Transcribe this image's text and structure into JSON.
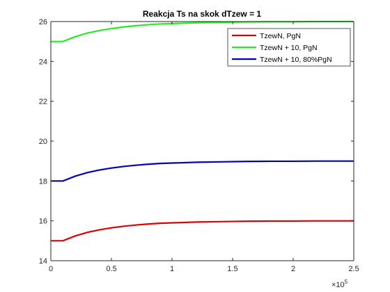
{
  "chart_data": {
    "type": "line",
    "title": "Reakcja Ts na skok dTzew = 1",
    "xlabel": "",
    "ylabel": "",
    "xlim": [
      0,
      250000
    ],
    "ylim": [
      14,
      26
    ],
    "x_ticks": [
      0,
      50000,
      100000,
      150000,
      200000,
      250000
    ],
    "x_tick_labels": [
      "0",
      "0.5",
      "1",
      "1.5",
      "2",
      "2.5"
    ],
    "x_exponent_label": "×10",
    "x_exponent_power": "5",
    "y_ticks": [
      14,
      16,
      18,
      20,
      22,
      24,
      26
    ],
    "y_tick_labels": [
      "14",
      "16",
      "18",
      "20",
      "22",
      "24",
      "26"
    ],
    "grid": false,
    "legend_position": "top-right",
    "series": [
      {
        "name": "TzewN, PgN",
        "color": "#e00000",
        "x": [
          0,
          10000,
          20000,
          30000,
          40000,
          50000,
          60000,
          70000,
          80000,
          90000,
          100000,
          120000,
          140000,
          160000,
          180000,
          200000,
          220000,
          250000
        ],
        "y": [
          15.0,
          15.0,
          15.24,
          15.42,
          15.55,
          15.65,
          15.73,
          15.79,
          15.84,
          15.88,
          15.9,
          15.94,
          15.96,
          15.98,
          15.99,
          15.99,
          16.0,
          16.0
        ]
      },
      {
        "name": "TzewN + 10, PgN",
        "color": "#22ee22",
        "x": [
          0,
          10000,
          20000,
          30000,
          40000,
          50000,
          60000,
          70000,
          80000,
          90000,
          100000,
          120000,
          140000,
          160000,
          180000,
          200000,
          220000,
          250000
        ],
        "y": [
          25.0,
          25.0,
          25.24,
          25.42,
          25.55,
          25.65,
          25.73,
          25.79,
          25.84,
          25.88,
          25.9,
          25.94,
          25.96,
          25.98,
          25.99,
          25.99,
          26.0,
          26.0
        ]
      },
      {
        "name": "TzewN + 10, 80%PgN",
        "color": "#0000bb",
        "x": [
          0,
          10000,
          20000,
          30000,
          40000,
          50000,
          60000,
          70000,
          80000,
          90000,
          100000,
          120000,
          140000,
          160000,
          180000,
          200000,
          220000,
          250000
        ],
        "y": [
          18.0,
          18.0,
          18.24,
          18.42,
          18.55,
          18.65,
          18.73,
          18.79,
          18.84,
          18.88,
          18.9,
          18.94,
          18.96,
          18.98,
          18.99,
          18.99,
          19.0,
          19.0
        ]
      }
    ]
  }
}
